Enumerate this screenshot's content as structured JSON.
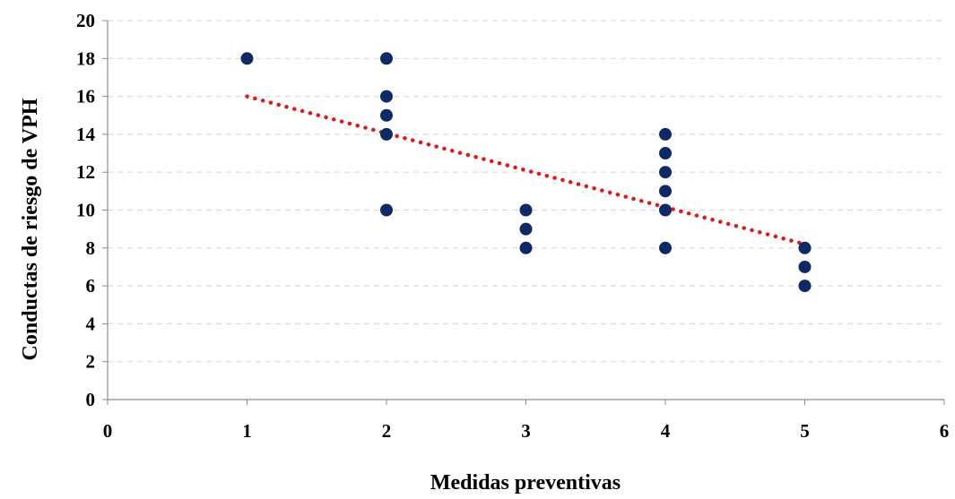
{
  "chart_data": {
    "type": "scatter",
    "xlabel": "Medidas preventivas",
    "ylabel": "Conductas de riesgo de VPH",
    "xlim": [
      0,
      6
    ],
    "ylim": [
      0,
      20
    ],
    "xticks": [
      "0",
      "1",
      "2",
      "3",
      "4",
      "5",
      "6"
    ],
    "yticks": [
      "0",
      "2",
      "4",
      "6",
      "8",
      "10",
      "12",
      "14",
      "16",
      "18",
      "20"
    ],
    "grid": "horizontal dashed",
    "legend": "none",
    "series": [
      {
        "points": [
          [
            1,
            18
          ],
          [
            2,
            18
          ],
          [
            2,
            16
          ],
          [
            2,
            15
          ],
          [
            2,
            14
          ],
          [
            2,
            10
          ],
          [
            3,
            10
          ],
          [
            3,
            9
          ],
          [
            3,
            8
          ],
          [
            4,
            14
          ],
          [
            4,
            13
          ],
          [
            4,
            12
          ],
          [
            4,
            11
          ],
          [
            4,
            10
          ],
          [
            4,
            8
          ],
          [
            5,
            8
          ],
          [
            5,
            7
          ],
          [
            5,
            6
          ]
        ],
        "color": "#0d2a66"
      }
    ],
    "trendline": {
      "type": "linear",
      "x_range": [
        1,
        5
      ],
      "y_values": [
        16,
        8.2
      ],
      "color": "#e0191b",
      "style": "dotted"
    }
  }
}
